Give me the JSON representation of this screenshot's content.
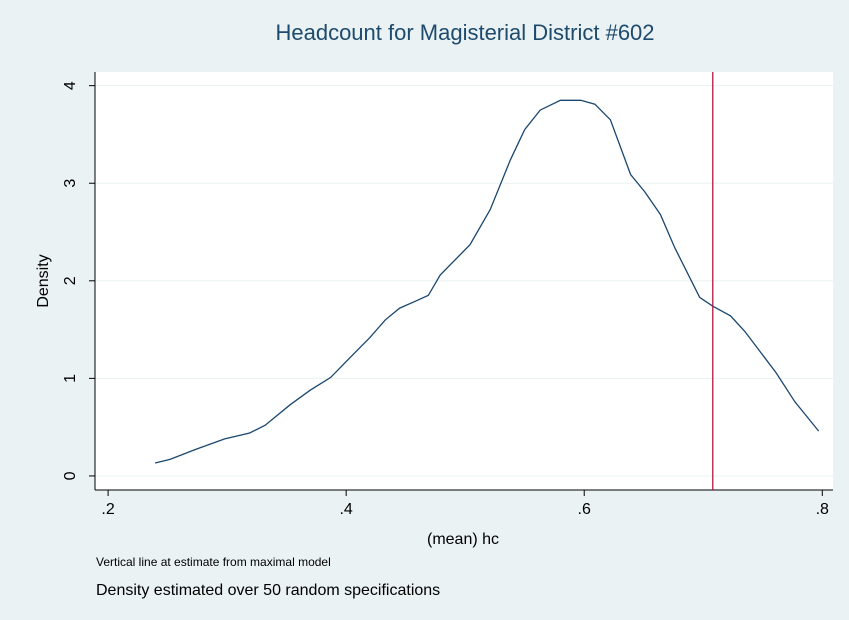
{
  "chart_data": {
    "type": "line",
    "title": "Headcount for Magisterial District #602",
    "xlabel": "(mean) hc",
    "ylabel": "Density",
    "notes": [
      "Vertical line at estimate from maximal model",
      "Density estimated over 50 random specifications"
    ],
    "x": [
      0.2395,
      0.252,
      0.273,
      0.298,
      0.319,
      0.332,
      0.353,
      0.37,
      0.387,
      0.403,
      0.42,
      0.433,
      0.445,
      0.458,
      0.469,
      0.479,
      0.504,
      0.521,
      0.538,
      0.55,
      0.563,
      0.58,
      0.597,
      0.609,
      0.622,
      0.639,
      0.651,
      0.664,
      0.676,
      0.697,
      0.708,
      0.723,
      0.735,
      0.748,
      0.761,
      0.777,
      0.797
    ],
    "values": [
      0.133,
      0.17,
      0.27,
      0.38,
      0.44,
      0.52,
      0.73,
      0.88,
      1.01,
      1.21,
      1.42,
      1.6,
      1.72,
      1.79,
      1.85,
      2.06,
      2.37,
      2.73,
      3.24,
      3.55,
      3.75,
      3.85,
      3.85,
      3.81,
      3.65,
      3.09,
      2.91,
      2.68,
      2.34,
      1.83,
      1.74,
      1.64,
      1.48,
      1.27,
      1.06,
      0.76,
      0.46
    ],
    "color": "#1a476f",
    "vline": {
      "value": 0.708,
      "color": "#b2183e"
    },
    "xlim": [
      0.189,
      0.809
    ],
    "ylim": [
      -0.144,
      4.14
    ],
    "xticks": [
      {
        "value": 0.2,
        "label": ".2"
      },
      {
        "value": 0.4,
        "label": ".4"
      },
      {
        "value": 0.6,
        "label": ".6"
      },
      {
        "value": 0.8,
        "label": ".8"
      }
    ],
    "yticks": [
      0,
      1,
      2,
      3,
      4
    ],
    "grid": true
  }
}
